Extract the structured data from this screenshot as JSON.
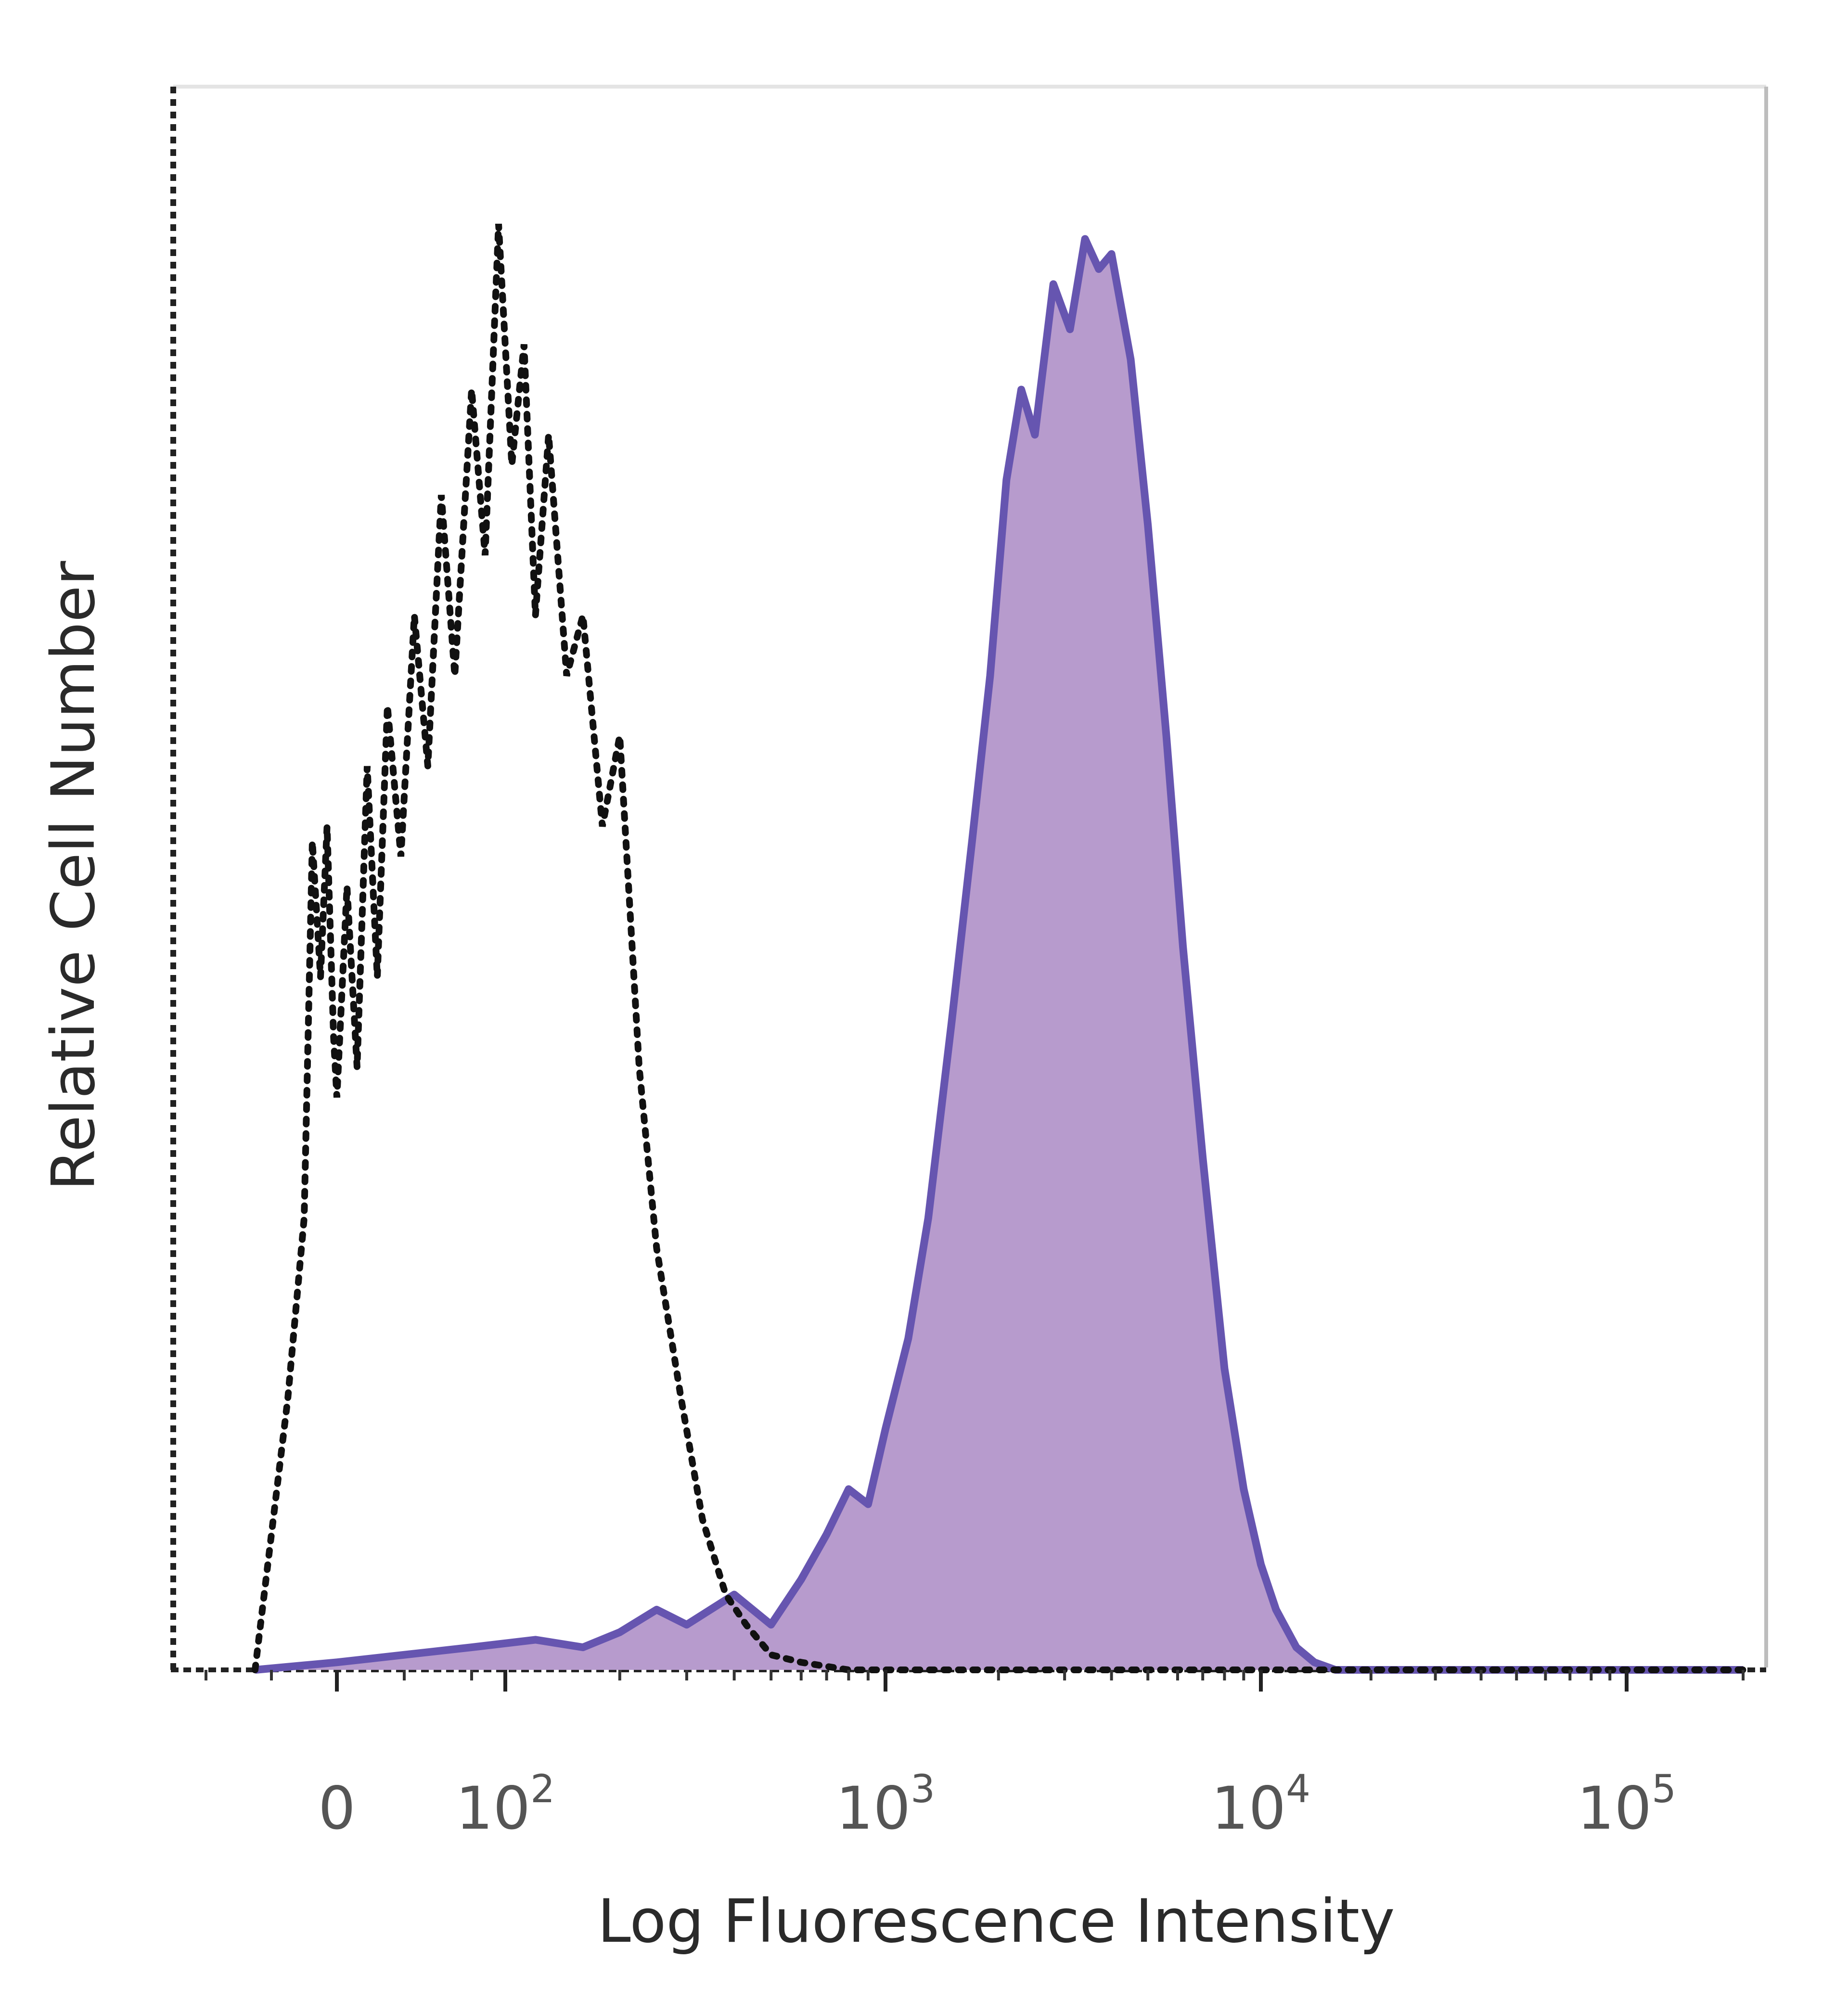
{
  "chart_data": {
    "type": "area",
    "title": "",
    "xlabel": "Log Fluorescence Intensity",
    "ylabel": "Relative Cell Number",
    "x_scale": "biexponential (log above ~10^2)",
    "xlim": [
      -100,
      250000
    ],
    "ylim": [
      0,
      100
    ],
    "x_tick_labels": [
      {
        "value": 0,
        "base": "0",
        "exp": ""
      },
      {
        "value": 100,
        "base": "10",
        "exp": "2"
      },
      {
        "value": 1000,
        "base": "10",
        "exp": "3"
      },
      {
        "value": 10000,
        "base": "10",
        "exp": "4"
      },
      {
        "value": 100000,
        "base": "10",
        "exp": "5"
      }
    ],
    "grid": false,
    "legend": "none",
    "series": [
      {
        "style": "dotted outline (isotype control)",
        "color": "#111111",
        "fill": "none",
        "points": [
          [
            -50,
            0
          ],
          [
            -30,
            18
          ],
          [
            -20,
            30
          ],
          [
            -15,
            55
          ],
          [
            -10,
            46
          ],
          [
            -6,
            56
          ],
          [
            -2,
            42
          ],
          [
            0,
            38
          ],
          [
            6,
            52
          ],
          [
            12,
            40
          ],
          [
            18,
            60
          ],
          [
            24,
            46
          ],
          [
            30,
            64
          ],
          [
            38,
            54
          ],
          [
            46,
            70
          ],
          [
            54,
            60
          ],
          [
            62,
            78
          ],
          [
            70,
            66
          ],
          [
            80,
            85
          ],
          [
            88,
            74
          ],
          [
            96,
            96
          ],
          [
            104,
            80
          ],
          [
            112,
            88
          ],
          [
            120,
            70
          ],
          [
            130,
            82
          ],
          [
            145,
            66
          ],
          [
            160,
            70
          ],
          [
            180,
            56
          ],
          [
            200,
            62
          ],
          [
            225,
            40
          ],
          [
            250,
            28
          ],
          [
            290,
            18
          ],
          [
            330,
            10
          ],
          [
            380,
            5
          ],
          [
            430,
            3
          ],
          [
            500,
            1
          ],
          [
            600,
            0.5
          ],
          [
            800,
            0
          ],
          [
            2000,
            0
          ],
          [
            20000,
            0
          ],
          [
            200000,
            0
          ]
        ]
      },
      {
        "style": "filled histogram (stained sample)",
        "color": "#6655b0",
        "fill": "#b79bcd",
        "points": [
          [
            -50,
            0
          ],
          [
            0,
            0.5
          ],
          [
            40,
            1
          ],
          [
            80,
            1.5
          ],
          [
            120,
            2
          ],
          [
            160,
            1.5
          ],
          [
            200,
            2.5
          ],
          [
            250,
            4
          ],
          [
            300,
            3
          ],
          [
            400,
            5
          ],
          [
            500,
            3
          ],
          [
            600,
            6
          ],
          [
            700,
            9
          ],
          [
            800,
            12
          ],
          [
            900,
            11
          ],
          [
            1000,
            16
          ],
          [
            1150,
            22
          ],
          [
            1300,
            30
          ],
          [
            1500,
            43
          ],
          [
            1700,
            55
          ],
          [
            1900,
            66
          ],
          [
            2100,
            79
          ],
          [
            2300,
            85
          ],
          [
            2500,
            82
          ],
          [
            2800,
            92
          ],
          [
            3100,
            89
          ],
          [
            3400,
            95
          ],
          [
            3700,
            93
          ],
          [
            4000,
            94
          ],
          [
            4500,
            87
          ],
          [
            5000,
            76
          ],
          [
            5600,
            62
          ],
          [
            6200,
            48
          ],
          [
            7000,
            34
          ],
          [
            8000,
            20
          ],
          [
            9000,
            12
          ],
          [
            10000,
            7
          ],
          [
            11000,
            4
          ],
          [
            12500,
            1.5
          ],
          [
            14000,
            0.5
          ],
          [
            16000,
            0
          ],
          [
            50000,
            0
          ],
          [
            200000,
            0
          ]
        ]
      }
    ]
  }
}
